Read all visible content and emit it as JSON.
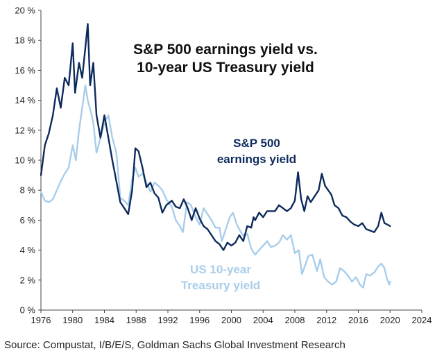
{
  "chart_data": {
    "type": "line",
    "title_lines": [
      "S&P 500 earnings yield vs.",
      "10-year US Treasury yield"
    ],
    "xlabel": "",
    "ylabel": "",
    "xlim": [
      1976,
      2024
    ],
    "ylim": [
      0,
      20
    ],
    "x_ticks": [
      1976,
      1980,
      1984,
      1988,
      1992,
      1996,
      2000,
      2004,
      2008,
      2012,
      2016,
      2020,
      2024
    ],
    "y_ticks": [
      0,
      2,
      4,
      6,
      8,
      10,
      12,
      14,
      16,
      18,
      20
    ],
    "y_tick_suffix": " %",
    "grid": false,
    "legend": "none (direct labels)",
    "series": [
      {
        "name": "S&P 500 earnings yield",
        "label_lines": [
          "S&P 500",
          "earnings yield"
        ],
        "color": "#0d2a5c",
        "x": [
          1976.0,
          1976.5,
          1977.0,
          1977.5,
          1978.0,
          1978.5,
          1979.0,
          1979.5,
          1980.0,
          1980.3,
          1980.8,
          1981.2,
          1981.6,
          1981.9,
          1982.2,
          1982.6,
          1983.0,
          1983.5,
          1984.0,
          1984.5,
          1985.0,
          1985.5,
          1986.0,
          1986.5,
          1987.0,
          1987.5,
          1987.9,
          1988.3,
          1988.8,
          1989.3,
          1989.8,
          1990.3,
          1990.8,
          1991.3,
          1991.8,
          1992.5,
          1993.0,
          1993.5,
          1994.0,
          1994.5,
          1995.0,
          1995.5,
          1996.0,
          1996.5,
          1997.0,
          1997.5,
          1998.0,
          1998.5,
          1999.0,
          1999.5,
          2000.0,
          2000.5,
          2001.0,
          2001.5,
          2002.0,
          2002.5,
          2002.8,
          2003.0,
          2003.5,
          2004.0,
          2004.5,
          2005.0,
          2005.5,
          2006.0,
          2006.5,
          2007.0,
          2007.5,
          2008.0,
          2008.4,
          2008.8,
          2009.2,
          2009.6,
          2010.0,
          2010.5,
          2011.0,
          2011.4,
          2011.8,
          2012.2,
          2012.6,
          2013.0,
          2013.5,
          2014.0,
          2014.5,
          2015.0,
          2015.5,
          2016.0,
          2016.5,
          2017.0,
          2017.5,
          2018.0,
          2018.5,
          2018.9,
          2019.3,
          2019.7,
          2020.0
        ],
        "values": [
          9.0,
          11.0,
          11.8,
          13.0,
          14.8,
          13.5,
          15.5,
          15.0,
          17.8,
          14.5,
          16.5,
          15.5,
          17.5,
          19.1,
          15.0,
          16.5,
          13.0,
          11.5,
          13.0,
          11.5,
          10.0,
          8.6,
          7.2,
          6.8,
          6.4,
          8.0,
          10.8,
          10.6,
          9.5,
          8.2,
          8.5,
          7.8,
          7.5,
          6.5,
          7.0,
          7.3,
          6.9,
          6.8,
          7.4,
          6.8,
          6.0,
          6.8,
          6.1,
          5.6,
          5.4,
          5.0,
          4.6,
          4.4,
          4.0,
          4.5,
          4.3,
          4.5,
          5.0,
          4.6,
          5.6,
          5.5,
          6.2,
          6.0,
          6.5,
          6.2,
          6.6,
          6.6,
          6.6,
          7.0,
          6.8,
          6.6,
          6.8,
          7.3,
          9.2,
          7.4,
          6.6,
          7.6,
          7.2,
          7.6,
          8.0,
          9.1,
          8.3,
          8.0,
          7.7,
          7.0,
          6.8,
          6.3,
          6.2,
          5.9,
          5.7,
          5.6,
          5.8,
          5.4,
          5.3,
          5.2,
          5.6,
          6.5,
          5.8,
          5.7,
          5.6
        ]
      },
      {
        "name": "US 10-year Treasury yield",
        "label_lines": [
          "US 10-year",
          "Treasury yield"
        ],
        "color": "#a8cdea",
        "x": [
          1976.0,
          1976.5,
          1977.0,
          1977.5,
          1978.0,
          1978.5,
          1979.0,
          1979.5,
          1980.0,
          1980.4,
          1980.8,
          1981.2,
          1981.6,
          1981.9,
          1982.3,
          1982.6,
          1983.0,
          1983.5,
          1984.0,
          1984.5,
          1985.0,
          1985.5,
          1986.0,
          1986.5,
          1987.0,
          1987.5,
          1987.9,
          1988.3,
          1988.8,
          1989.3,
          1989.8,
          1990.3,
          1990.8,
          1991.3,
          1991.8,
          1992.5,
          1993.0,
          1993.5,
          1993.9,
          1994.4,
          1994.9,
          1995.5,
          1996.0,
          1996.5,
          1997.0,
          1997.5,
          1998.0,
          1998.5,
          1998.8,
          1999.3,
          1999.8,
          2000.2,
          2000.7,
          2001.2,
          2001.6,
          2002.0,
          2002.5,
          2003.0,
          2003.5,
          2004.0,
          2004.5,
          2005.0,
          2005.5,
          2006.0,
          2006.5,
          2007.0,
          2007.5,
          2008.0,
          2008.5,
          2008.9,
          2009.3,
          2009.7,
          2010.2,
          2010.8,
          2011.2,
          2011.7,
          2012.2,
          2012.7,
          2013.2,
          2013.7,
          2014.2,
          2014.7,
          2015.2,
          2015.7,
          2016.2,
          2016.6,
          2017.0,
          2017.5,
          2018.0,
          2018.5,
          2018.9,
          2019.3,
          2019.6,
          2019.9,
          2020.0
        ],
        "values": [
          7.9,
          7.3,
          7.2,
          7.4,
          8.0,
          8.6,
          9.1,
          9.5,
          11.0,
          10.0,
          12.0,
          13.5,
          15.0,
          14.0,
          13.2,
          12.5,
          10.5,
          11.5,
          12.5,
          13.0,
          11.5,
          10.5,
          7.5,
          7.3,
          7.0,
          8.7,
          9.5,
          8.9,
          9.1,
          8.5,
          7.9,
          8.5,
          8.3,
          8.0,
          7.4,
          6.9,
          6.0,
          5.6,
          5.2,
          7.2,
          7.0,
          6.2,
          5.7,
          6.8,
          6.4,
          6.0,
          5.5,
          5.5,
          4.6,
          5.4,
          6.2,
          6.5,
          5.7,
          5.2,
          4.9,
          5.1,
          4.1,
          3.7,
          4.0,
          4.3,
          4.6,
          4.2,
          4.3,
          4.5,
          5.0,
          4.7,
          5.0,
          3.8,
          4.0,
          2.4,
          3.0,
          3.6,
          3.7,
          2.6,
          3.4,
          2.2,
          1.9,
          1.7,
          1.9,
          2.8,
          2.6,
          2.3,
          1.9,
          2.2,
          1.7,
          1.5,
          2.4,
          2.3,
          2.5,
          2.9,
          3.1,
          2.8,
          2.1,
          1.7,
          1.9
        ]
      }
    ]
  },
  "source_text": "Source: Compustat, I/B/E/S, Goldman Sachs Global Investment Research"
}
